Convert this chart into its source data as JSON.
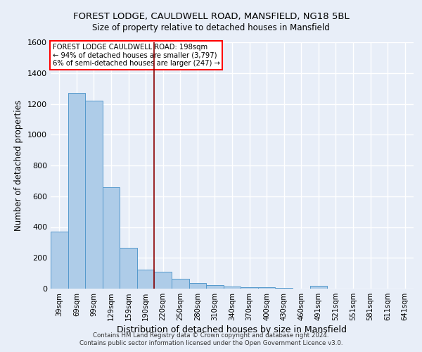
{
  "title1": "FOREST LODGE, CAULDWELL ROAD, MANSFIELD, NG18 5BL",
  "title2": "Size of property relative to detached houses in Mansfield",
  "xlabel": "Distribution of detached houses by size in Mansfield",
  "ylabel": "Number of detached properties",
  "footer1": "Contains HM Land Registry data © Crown copyright and database right 2024.",
  "footer2": "Contains public sector information licensed under the Open Government Licence v3.0.",
  "annotation_line1": "FOREST LODGE CAULDWELL ROAD: 198sqm",
  "annotation_line2": "← 94% of detached houses are smaller (3,797)",
  "annotation_line3": "6% of semi-detached houses are larger (247) →",
  "bar_labels": [
    "39sqm",
    "69sqm",
    "99sqm",
    "129sqm",
    "159sqm",
    "190sqm",
    "220sqm",
    "250sqm",
    "280sqm",
    "310sqm",
    "340sqm",
    "370sqm",
    "400sqm",
    "430sqm",
    "460sqm",
    "491sqm",
    "521sqm",
    "551sqm",
    "581sqm",
    "611sqm",
    "641sqm"
  ],
  "bar_values": [
    370,
    1270,
    1220,
    660,
    265,
    125,
    110,
    65,
    35,
    25,
    15,
    10,
    8,
    5,
    0,
    18,
    0,
    0,
    0,
    0,
    0
  ],
  "bar_color": "#aecce8",
  "bar_edge_color": "#5599cc",
  "background_color": "#e8eef8",
  "grid_color": "#ffffff",
  "red_line_x": 5.5,
  "ylim": [
    0,
    1600
  ],
  "yticks": [
    0,
    200,
    400,
    600,
    800,
    1000,
    1200,
    1400,
    1600
  ]
}
